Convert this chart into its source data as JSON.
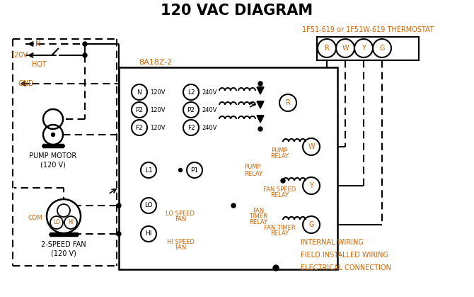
{
  "title": "120 VAC DIAGRAM",
  "title_color": "#000000",
  "title_fontsize": 14,
  "bg_color": "#ffffff",
  "orange_color": "#cc6600",
  "black_color": "#000000",
  "thermostat_label": "1F51-619 or 1F51W-619 THERMOSTAT",
  "control_box_label": "8A18Z-2",
  "legend_items": [
    {
      "label": "INTERNAL WIRING"
    },
    {
      "label": "FIELD INSTALLED WIRING"
    },
    {
      "label": "ELECTRICAL CONNECTION"
    }
  ]
}
